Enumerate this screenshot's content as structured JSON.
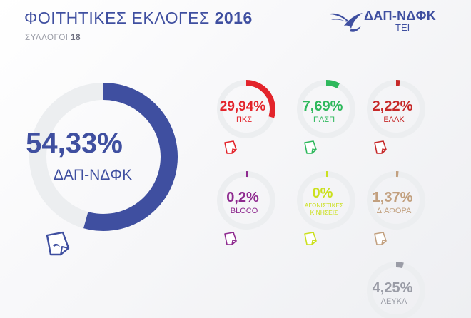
{
  "header": {
    "title_light": "ΦΟΙΤΗΤΙΚΕΣ ΕΚΛΟΓΕΣ",
    "title_year": "2016",
    "subtitle_label": "ΣΥΛΛΟΓΟΙ",
    "subtitle_count": "18",
    "logo_name": "ΔΑΠ-ΝΔΦΚ",
    "logo_sub": "ΤΕΙ"
  },
  "colors": {
    "track": "#eceef0",
    "ndfk": "#3f4fa0",
    "pks": "#e3242b",
    "pasp": "#2eb85c",
    "eaak": "#c62828",
    "bloco": "#8e2a8f",
    "agonistikes": "#cbe01e",
    "diafora": "#c2a07f",
    "leyka": "#9a9ca6"
  },
  "chart_data": {
    "type": "pie",
    "title": "ΦΟΙΤΗΤΙΚΕΣ ΕΚΛΟΓΕΣ 2016",
    "subtitle": "ΣΥΛΛΟΓΟΙ 18",
    "series": [
      {
        "name": "ΔΑΠ-ΝΔΦΚ",
        "value": 54.33,
        "label": "54,33%",
        "color": "#3f4fa0"
      },
      {
        "name": "ΠΚΣ",
        "value": 29.94,
        "label": "29,94%",
        "color": "#e3242b"
      },
      {
        "name": "ΠΑΣΠ",
        "value": 7.69,
        "label": "7,69%",
        "color": "#2eb85c"
      },
      {
        "name": "ΕΑΑΚ",
        "value": 2.22,
        "label": "2,22%",
        "color": "#c62828"
      },
      {
        "name": "BLOCO",
        "value": 0.2,
        "label": "0,2%",
        "color": "#8e2a8f"
      },
      {
        "name": "ΑΓΩΝΙΣΤΙΚΕΣ ΚΙΝΗΣΕΙΣ",
        "value": 0,
        "label": "0%",
        "color": "#cbe01e"
      },
      {
        "name": "ΔΙΑΦΟΡΑ",
        "value": 1.37,
        "label": "1,37%",
        "color": "#c2a07f"
      },
      {
        "name": "ΛΕΥΚΑ",
        "value": 4.25,
        "label": "4,25%",
        "color": "#9a9ca6"
      }
    ]
  }
}
